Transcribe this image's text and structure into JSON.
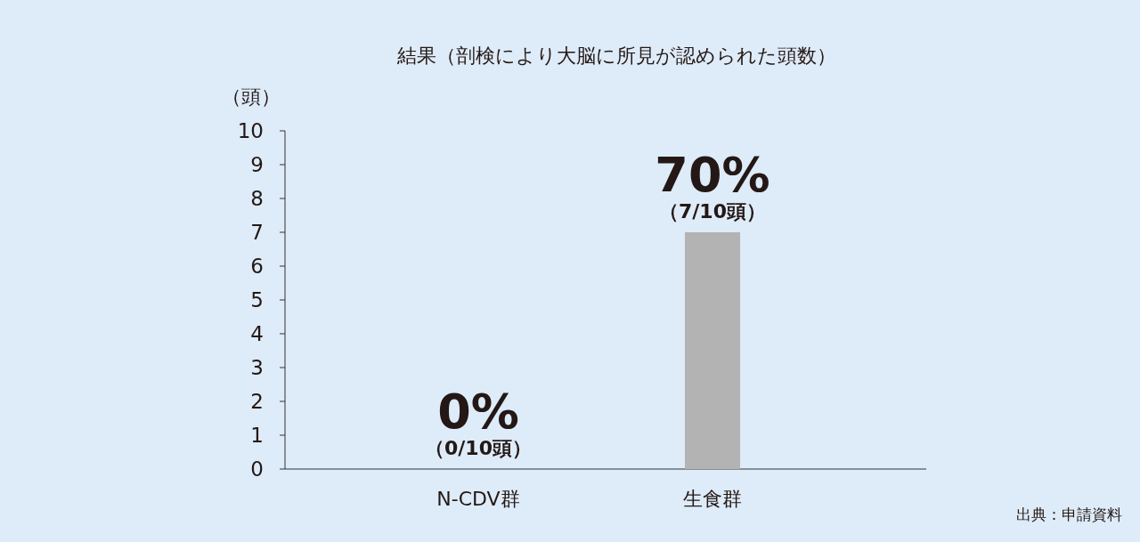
{
  "chart_data": {
    "type": "bar",
    "title": "結果（剖検により大脳に所見が認められた頭数）",
    "ylabel": "（頭）",
    "categories": [
      "N-CDV群",
      "生食群"
    ],
    "values": [
      0,
      7
    ],
    "colors": [
      "#1a5a94",
      "#b3b3b3"
    ],
    "value_labels": [
      "0%\n（0/10頭）",
      "70%\n（7/10頭）"
    ],
    "ylim": [
      0,
      10
    ],
    "yticks": [
      0,
      1,
      2,
      3,
      4,
      5,
      6,
      7,
      8,
      9,
      10
    ],
    "annotations": [
      "出典：申請資料"
    ]
  }
}
